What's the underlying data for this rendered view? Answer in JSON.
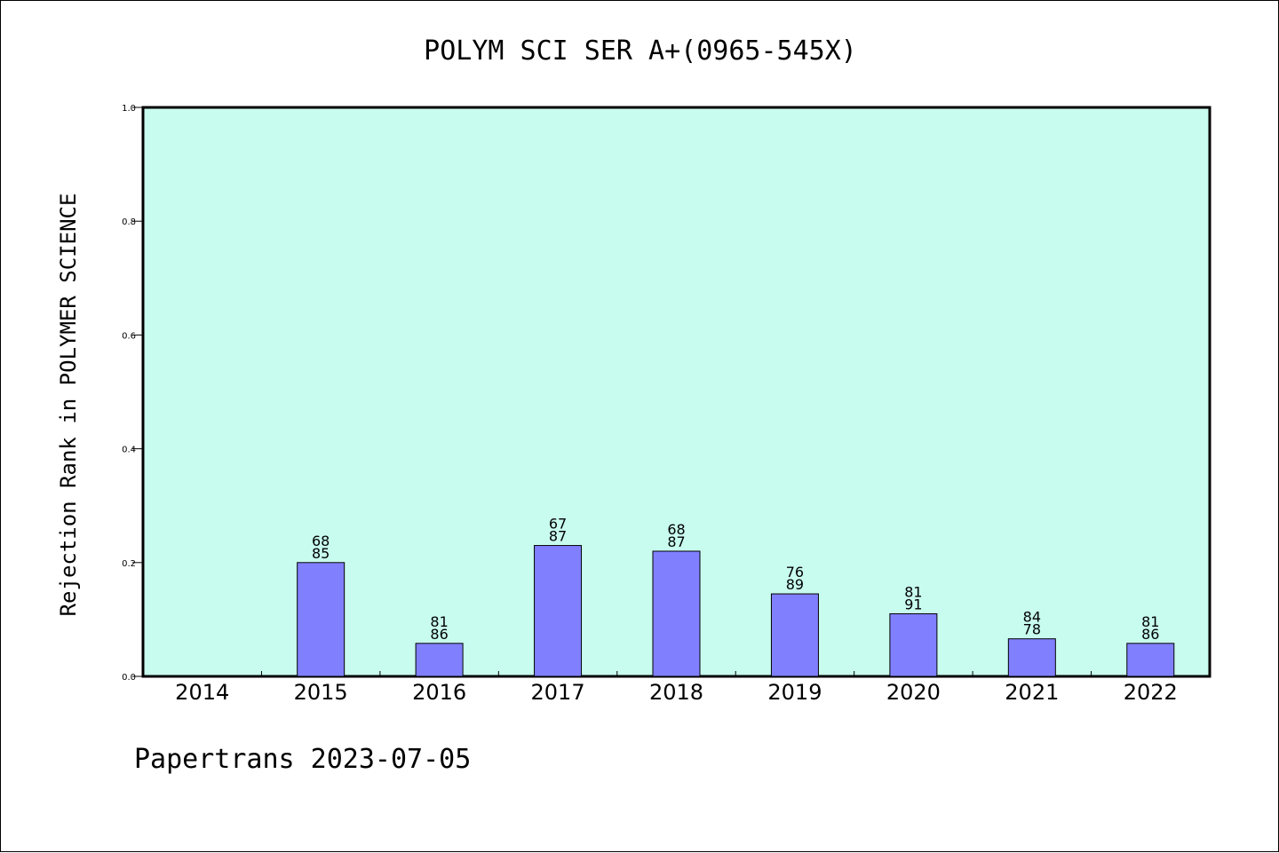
{
  "chart_data": {
    "type": "bar",
    "title": "POLYM SCI SER A+(0965-545X)",
    "xlabel": "",
    "ylabel": "Rejection Rank in POLYMER SCIENCE",
    "ylim": [
      0,
      1.0
    ],
    "yticks": [
      "0.0",
      "0.2",
      "0.4",
      "0.6",
      "0.8",
      "1.0"
    ],
    "grid": false,
    "categories": [
      "2014",
      "2015",
      "2016",
      "2017",
      "2018",
      "2019",
      "2020",
      "2021",
      "2022"
    ],
    "values": [
      0,
      0.2,
      0.058,
      0.23,
      0.22,
      0.145,
      0.11,
      0.066,
      0.058
    ],
    "labels_top": [
      "",
      "68",
      "81",
      "67",
      "68",
      "76",
      "81",
      "84",
      "81"
    ],
    "labels_bottom": [
      "",
      "85",
      "86",
      "87",
      "87",
      "89",
      "91",
      "78",
      "86"
    ]
  },
  "footer": "Papertrans 2023-07-05",
  "colors": {
    "plot_background": "#c8fcef",
    "bar_fill": "#8080ff",
    "bar_stroke": "#000000",
    "axis": "#000000"
  }
}
